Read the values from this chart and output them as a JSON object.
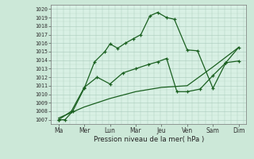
{
  "xlabel": "Pression niveau de la mer( hPa )",
  "bg_color": "#cce8d8",
  "plot_bg_color": "#d8f0e4",
  "grid_color_major": "#aaccbb",
  "grid_color_minor": "#c4ddd0",
  "line_color": "#1a6020",
  "ylim": [
    1006.5,
    1020.5
  ],
  "yticks": [
    1007,
    1008,
    1009,
    1010,
    1011,
    1012,
    1013,
    1014,
    1015,
    1016,
    1017,
    1018,
    1019,
    1020
  ],
  "x_labels": [
    "Ma",
    "Mer",
    "Lun",
    "Mar",
    "Jeu",
    "Ven",
    "Sam",
    "Dim"
  ],
  "x_positions": [
    0,
    1,
    2,
    3,
    4,
    5,
    6,
    7
  ],
  "line1_x": [
    0,
    0.25,
    0.55,
    1.0,
    1.4,
    1.8,
    2.0,
    2.3,
    2.6,
    2.9,
    3.2,
    3.55,
    3.85,
    4.2,
    4.5,
    5.0,
    5.4,
    6.0,
    6.5,
    7.0
  ],
  "line1_y": [
    1007.0,
    1007.0,
    1008.0,
    1010.7,
    1013.8,
    1015.0,
    1015.9,
    1015.4,
    1016.0,
    1016.5,
    1017.0,
    1019.2,
    1019.6,
    1019.0,
    1018.8,
    1015.2,
    1015.1,
    1010.7,
    1013.7,
    1015.5
  ],
  "line2_x": [
    0,
    0.5,
    1.0,
    1.5,
    2.0,
    2.5,
    3.0,
    3.5,
    3.85,
    4.2,
    4.6,
    5.0,
    5.5,
    6.0,
    6.5,
    7.0
  ],
  "line2_y": [
    1007.0,
    1008.0,
    1010.8,
    1012.0,
    1011.2,
    1012.5,
    1013.0,
    1013.5,
    1013.8,
    1014.2,
    1010.3,
    1010.3,
    1010.6,
    1012.2,
    1013.7,
    1013.9
  ],
  "line3_x": [
    0,
    1,
    2,
    3,
    4,
    5,
    6,
    7
  ],
  "line3_y": [
    1007.2,
    1008.5,
    1009.5,
    1010.3,
    1010.8,
    1011.0,
    1013.2,
    1015.5
  ]
}
